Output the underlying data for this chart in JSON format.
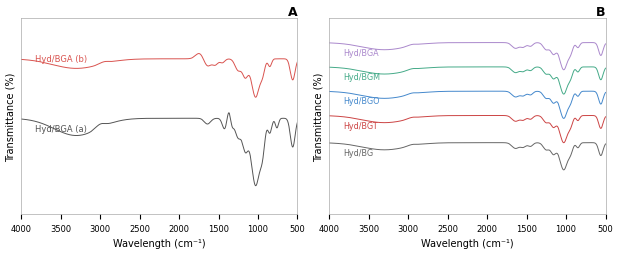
{
  "panel_A_label": "A",
  "panel_B_label": "B",
  "xlabel": "Wavelength (cm⁻¹)",
  "ylabel": "Transmittance (%)",
  "colors_A": [
    "#d9534f",
    "#555555"
  ],
  "labels_A": [
    "Hyd/BGA (b)",
    "Hyd/BGA (a)"
  ],
  "colors_B": [
    "#aa88cc",
    "#44aa88",
    "#4488cc",
    "#cc4444",
    "#666666"
  ],
  "labels_B": [
    "Hyd/BGA",
    "Hyd/BGM",
    "Hyd/BGO",
    "Hyd/BGT",
    "Hyd/BG"
  ],
  "bg_color": "#ffffff",
  "plot_bg": "#ffffff"
}
